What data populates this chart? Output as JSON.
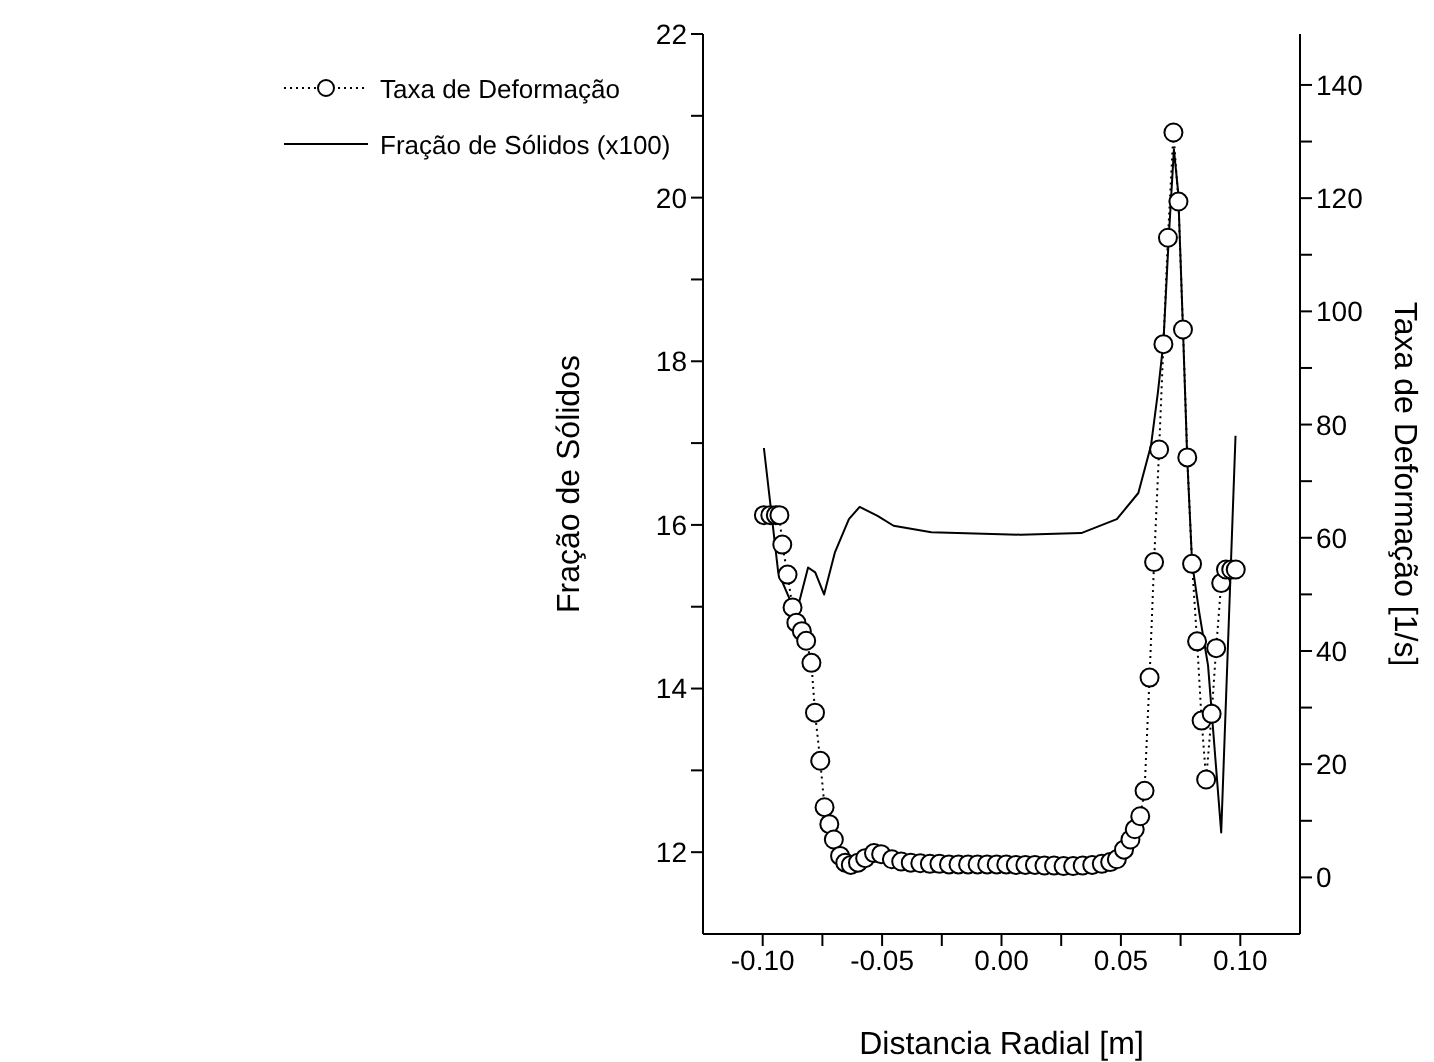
{
  "chart_data": {
    "type": "line",
    "xlabel": "Distancia Radial [m]",
    "ylabel": "Fração de Sólidos",
    "y2label": "Taxa de Deformação [1/s]",
    "xlim": [
      -0.125,
      0.125
    ],
    "xticks": [
      {
        "value": -0.1,
        "label": "-0.10"
      },
      {
        "value": -0.075,
        "label": null
      },
      {
        "value": -0.05,
        "label": "-0.05"
      },
      {
        "value": -0.025,
        "label": null
      },
      {
        "value": 0,
        "label": "0.00"
      },
      {
        "value": 0.025,
        "label": null
      },
      {
        "value": 0.05,
        "label": "0.05"
      },
      {
        "value": 0.075,
        "label": null
      },
      {
        "value": 0.1,
        "label": "0.10"
      }
    ],
    "ylim": [
      11,
      22
    ],
    "yticks": [
      12,
      {
        "value": 13,
        "label": null
      },
      14,
      {
        "value": 15,
        "label": null
      },
      16,
      {
        "value": 17,
        "label": null
      },
      18,
      {
        "value": 19,
        "label": null
      },
      20,
      {
        "value": 21,
        "label": null
      },
      22
    ],
    "y2lim": [
      -10,
      149
    ],
    "y2ticks": [
      0,
      {
        "value": 10,
        "label": null
      },
      20,
      {
        "value": 30,
        "label": null
      },
      40,
      {
        "value": 50,
        "label": null
      },
      60,
      {
        "value": 70,
        "label": null
      },
      80,
      {
        "value": 90,
        "label": null
      },
      100,
      {
        "value": 110,
        "label": null
      },
      120,
      {
        "value": 130,
        "label": null
      },
      140
    ],
    "legend": "top left",
    "series": [
      {
        "name": "Taxa de Deformação",
        "color": "#000000",
        "axis": "y2",
        "marker": "circle",
        "line_style": "dotted",
        "x": [
          -0.0995,
          -0.0968,
          -0.0945,
          -0.093,
          -0.0918,
          -0.0896,
          -0.0875,
          -0.0859,
          -0.0836,
          -0.0818,
          -0.0796,
          -0.0781,
          -0.0759,
          -0.0741,
          -0.0721,
          -0.0702,
          -0.0676,
          -0.0654,
          -0.0631,
          -0.0601,
          -0.0571,
          -0.0534,
          -0.0504,
          -0.0459,
          -0.042,
          -0.038,
          -0.034,
          -0.03,
          -0.026,
          -0.022,
          -0.018,
          -0.014,
          -0.01,
          -0.006,
          -0.002,
          0.002,
          0.006,
          0.01,
          0.014,
          0.018,
          0.022,
          0.026,
          0.03,
          0.034,
          0.038,
          0.042,
          0.0455,
          0.0483,
          0.0513,
          0.054,
          0.0558,
          0.0581,
          0.0599,
          0.062,
          0.0639,
          0.066,
          0.0678,
          0.0697,
          0.072,
          0.0741,
          0.076,
          0.0778,
          0.0798,
          0.0819,
          0.0838,
          0.0857,
          0.088,
          0.0899,
          0.092,
          0.094,
          0.0962,
          0.0981
        ],
        "values": [
          64,
          64,
          64,
          64,
          58.8,
          53.5,
          47.7,
          45,
          43.5,
          41.8,
          37.9,
          29.1,
          20.6,
          12.4,
          9.4,
          6.7,
          3.8,
          2.6,
          2.2,
          2.6,
          3.4,
          4.3,
          4.1,
          3.2,
          2.8,
          2.6,
          2.5,
          2.4,
          2.4,
          2.3,
          2.3,
          2.3,
          2.3,
          2.3,
          2.3,
          2.3,
          2.2,
          2.2,
          2.2,
          2.1,
          2.1,
          2.0,
          2.0,
          2.1,
          2.2,
          2.4,
          2.7,
          3.2,
          4.9,
          6.7,
          8.5,
          10.8,
          15.3,
          35.3,
          55.7,
          75.6,
          94.2,
          113,
          131.6,
          119.4,
          96.8,
          74.2,
          55.4,
          41.7,
          27.7,
          17.3,
          28.9,
          40.5,
          52,
          54.4,
          54.4,
          54.4
        ]
      },
      {
        "name": "Fração de Sólidos (x100)",
        "color": "#000000",
        "marker": "none",
        "line_style": "solid",
        "x": [
          -0.0995,
          -0.0935,
          -0.0875,
          -0.0848,
          -0.081,
          -0.078,
          -0.0743,
          -0.0698,
          -0.0639,
          -0.0594,
          -0.0519,
          -0.0452,
          -0.0294,
          0.008,
          0.0334,
          0.0483,
          0.0573,
          0.0626,
          0.0655,
          0.0678,
          0.07,
          0.0722,
          0.074,
          0.076,
          0.0778,
          0.0798,
          0.0828,
          0.0865,
          0.092,
          0.098
        ],
        "values": [
          16.94,
          15.42,
          15.01,
          15.05,
          15.48,
          15.42,
          15.15,
          15.66,
          16.07,
          16.22,
          16.11,
          15.99,
          15.91,
          15.88,
          15.9,
          16.07,
          16.39,
          16.97,
          17.62,
          18.23,
          19.49,
          20.59,
          20.06,
          18.39,
          16.8,
          15.54,
          14.93,
          14.28,
          12.24,
          17.09
        ]
      }
    ]
  }
}
